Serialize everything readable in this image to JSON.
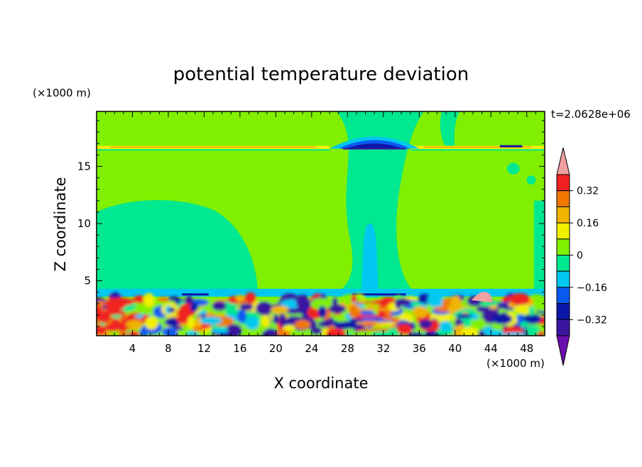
{
  "chart_data": {
    "type": "heatmap",
    "title": "potential temperature deviation",
    "xlabel": "X coordinate",
    "ylabel": "Z coordinate",
    "x_units": "(×1000 m)",
    "y_units": "(×1000 m)",
    "time_label": "t=2.0628e+06",
    "xlim": [
      0,
      50
    ],
    "ylim": [
      0.2,
      19.8
    ],
    "x_ticks": [
      4,
      8,
      12,
      16,
      20,
      24,
      28,
      32,
      36,
      40,
      44,
      48
    ],
    "y_ticks": [
      5,
      10,
      15
    ],
    "colorbar": {
      "levels": [
        -0.4,
        -0.32,
        -0.24,
        -0.16,
        -0.08,
        0,
        0.08,
        0.16,
        0.24,
        0.32,
        0.4
      ],
      "labeled_levels": [
        -0.32,
        -0.16,
        0,
        0.16,
        0.32
      ],
      "labels": [
        "−0.32",
        "−0.16",
        "0",
        "0.16",
        "0.32"
      ],
      "colors": [
        "#6a0dad",
        "#3b16a0",
        "#0a16a8",
        "#0a5af0",
        "#00c8f0",
        "#00e890",
        "#80f000",
        "#f0f000",
        "#f0b400",
        "#f07800",
        "#f02020",
        "#f0a0a0"
      ],
      "extend": "both",
      "placement": "right"
    },
    "background_value": 0.04,
    "features": [
      {
        "desc": "warm layer near tropopause",
        "x": [
          0,
          26
        ],
        "z": [
          16.5,
          16.8
        ],
        "value": 0.2
      },
      {
        "desc": "warm layer near tropopause",
        "x": [
          35,
          50
        ],
        "z": [
          16.5,
          16.8
        ],
        "value": 0.2
      },
      {
        "desc": "cold dome above updraft",
        "x": [
          27,
          35
        ],
        "z": [
          16.3,
          17.3
        ],
        "value": -0.3
      },
      {
        "desc": "weak cold plume",
        "x": [
          26,
          36
        ],
        "z": [
          3.5,
          19.8
        ],
        "value": -0.04
      },
      {
        "desc": "cold core of plume",
        "x": [
          29.5,
          31.5
        ],
        "z": [
          3.5,
          10
        ],
        "value": -0.12
      },
      {
        "desc": "turbulent boundary layer",
        "x": [
          0,
          50
        ],
        "z": [
          0.2,
          3.5
        ],
        "value_range": [
          -0.4,
          0.4
        ]
      }
    ]
  }
}
